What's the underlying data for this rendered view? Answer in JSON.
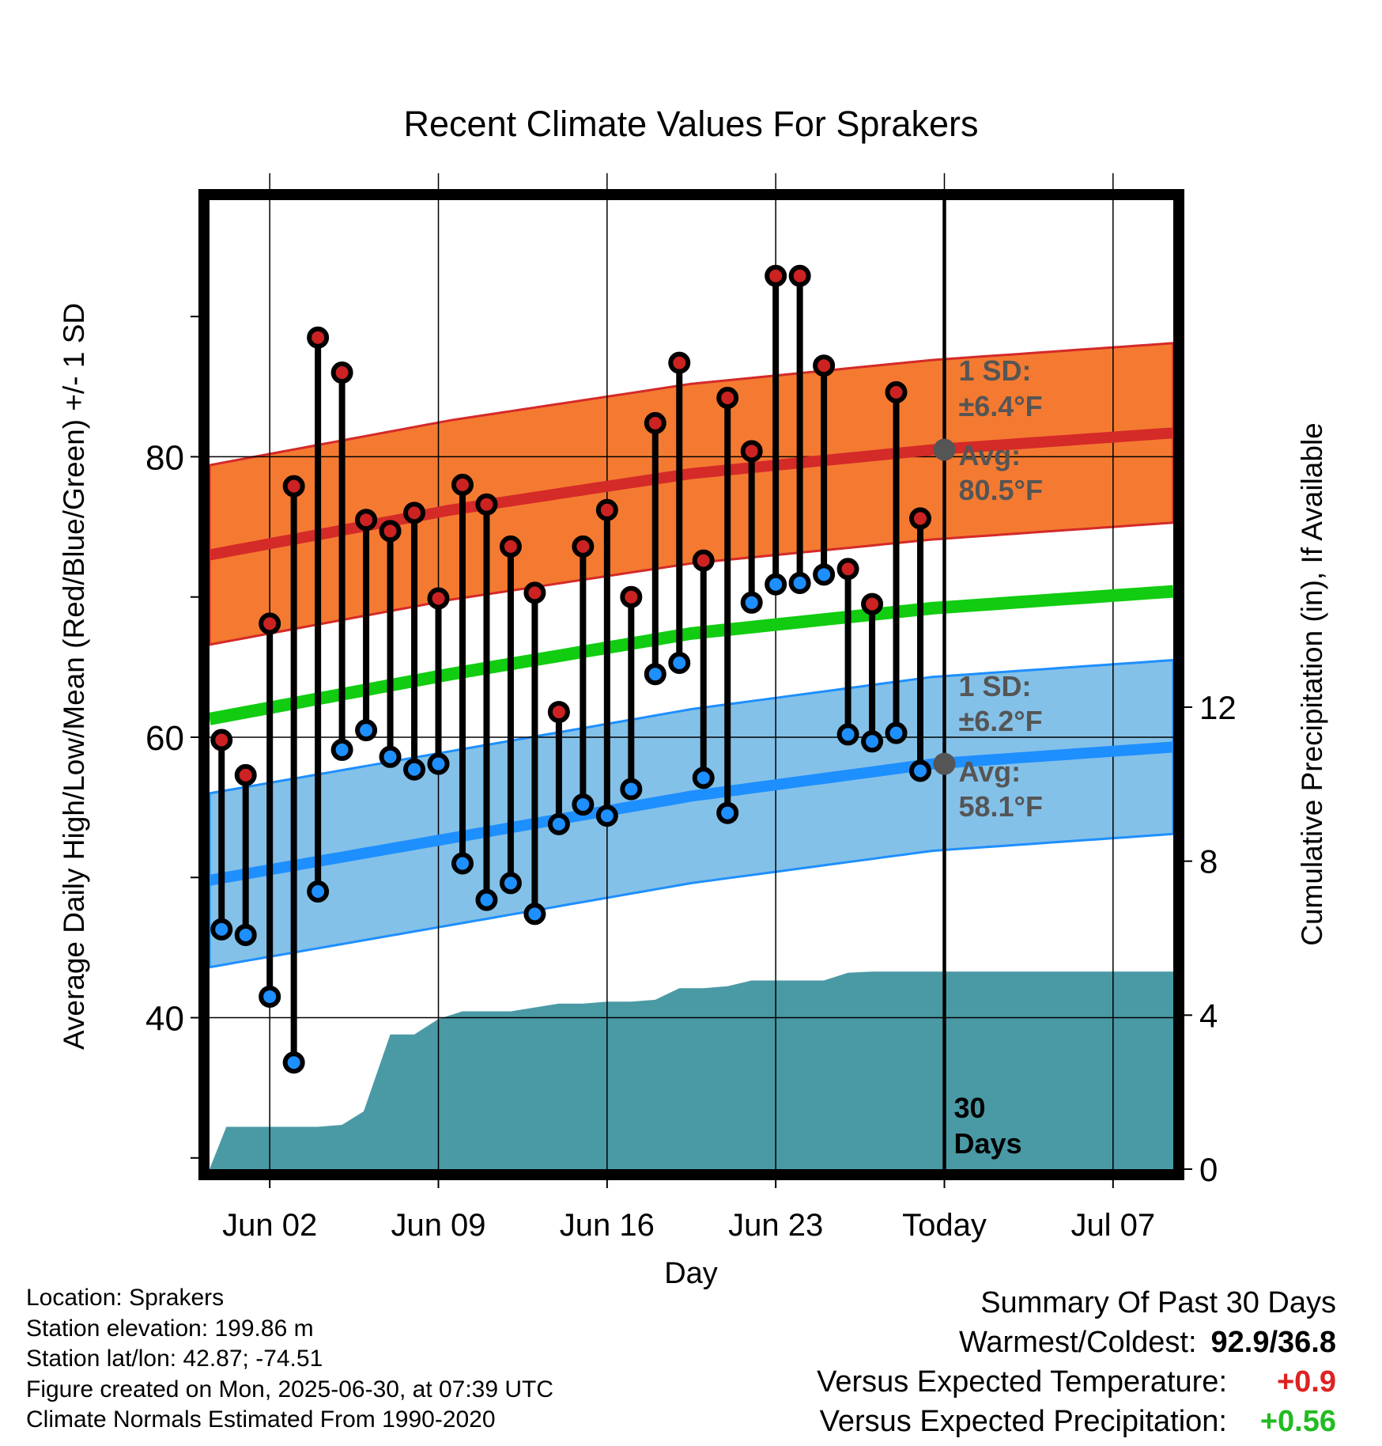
{
  "chart_data": {
    "type": "line",
    "title": "Recent Climate Values For Sprakers",
    "xlabel": "Day",
    "ylabel": "Average Daily High/Low/Mean (Red/Blue/Green) +/- 1 SD",
    "y2label": "Cumulative Precipitation (in), If Available",
    "x_ticks": [
      "Jun 02",
      "Jun 09",
      "Jun 16",
      "Jun 23",
      "Today",
      "Jul 07"
    ],
    "x_tick_days": [
      2,
      9,
      16,
      23,
      30,
      37
    ],
    "xlim": [
      -0.5,
      39.5
    ],
    "y_ticks": [
      40,
      60,
      80
    ],
    "ylim": [
      29.2,
      98.3
    ],
    "y2_ticks": [
      0,
      4,
      8,
      12
    ],
    "y2lim": [
      0,
      25.17
    ],
    "today_day": 30,
    "today_label": "30 Days",
    "grid": true,
    "high_lows": [
      {
        "day": 0,
        "high": 59.8,
        "low": 46.3
      },
      {
        "day": 1,
        "high": 57.3,
        "low": 45.9
      },
      {
        "day": 2,
        "high": 68.1,
        "low": 41.5
      },
      {
        "day": 3,
        "high": 77.9,
        "low": 36.8
      },
      {
        "day": 4,
        "high": 88.5,
        "low": 49.0
      },
      {
        "day": 5,
        "high": 86.0,
        "low": 59.1
      },
      {
        "day": 6,
        "high": 75.5,
        "low": 60.5
      },
      {
        "day": 7,
        "high": 74.7,
        "low": 58.6
      },
      {
        "day": 8,
        "high": 76.0,
        "low": 57.7
      },
      {
        "day": 9,
        "high": 69.9,
        "low": 58.1
      },
      {
        "day": 10,
        "high": 78.0,
        "low": 51.0
      },
      {
        "day": 11,
        "high": 76.6,
        "low": 48.4
      },
      {
        "day": 12,
        "high": 73.6,
        "low": 49.6
      },
      {
        "day": 13,
        "high": 70.3,
        "low": 47.4
      },
      {
        "day": 14,
        "high": 61.8,
        "low": 53.8
      },
      {
        "day": 15,
        "high": 73.6,
        "low": 55.2
      },
      {
        "day": 16,
        "high": 76.2,
        "low": 54.4
      },
      {
        "day": 17,
        "high": 70.0,
        "low": 56.3
      },
      {
        "day": 18,
        "high": 82.4,
        "low": 64.5
      },
      {
        "day": 19,
        "high": 86.7,
        "low": 65.3
      },
      {
        "day": 20,
        "high": 72.6,
        "low": 57.1
      },
      {
        "day": 21,
        "high": 84.2,
        "low": 54.6
      },
      {
        "day": 22,
        "high": 80.4,
        "low": 69.6
      },
      {
        "day": 23,
        "high": 92.9,
        "low": 70.9
      },
      {
        "day": 24,
        "high": 92.9,
        "low": 71.0
      },
      {
        "day": 25,
        "high": 86.5,
        "low": 71.6
      },
      {
        "day": 26,
        "high": 72.0,
        "low": 60.2
      },
      {
        "day": 27,
        "high": 69.5,
        "low": 59.7
      },
      {
        "day": 28,
        "high": 84.6,
        "low": 60.3
      },
      {
        "day": 29,
        "high": 75.6,
        "low": 57.6
      }
    ],
    "normals": {
      "days": [
        -0.5,
        9.5,
        19.5,
        29.5,
        39.5
      ],
      "high_avg": [
        73.0,
        76.2,
        78.8,
        80.5,
        81.7
      ],
      "low_avg": [
        49.8,
        52.8,
        55.8,
        58.1,
        59.3
      ],
      "mean_avg": [
        61.3,
        64.5,
        67.4,
        69.2,
        70.4
      ],
      "high_sd": 6.4,
      "low_sd": 6.2
    },
    "precip": {
      "days": [
        -0.5,
        0.2,
        1,
        2,
        3,
        4,
        5,
        5.9,
        7,
        8,
        9,
        10,
        11,
        12,
        13,
        14,
        15,
        16,
        17,
        18,
        19,
        20,
        21,
        22,
        23,
        24,
        25,
        26,
        27,
        28,
        29,
        30,
        39.5
      ],
      "values": [
        0,
        1.1,
        1.1,
        1.1,
        1.1,
        1.1,
        1.15,
        1.5,
        3.5,
        3.5,
        3.9,
        4.1,
        4.1,
        4.1,
        4.2,
        4.3,
        4.3,
        4.35,
        4.35,
        4.4,
        4.7,
        4.7,
        4.75,
        4.9,
        4.9,
        4.9,
        4.9,
        5.1,
        5.13,
        5.13,
        5.13,
        5.13,
        5.13
      ]
    },
    "annotations": {
      "high_sd_label": "1 SD:",
      "high_sd_value": "±6.4°F",
      "high_avg_label": "Avg:",
      "high_avg_value": "80.5°F",
      "high_avg_marker": 80.5,
      "low_sd_label": "1 SD:",
      "low_sd_value": "±6.2°F",
      "low_avg_label": "Avg:",
      "low_avg_value": "58.1°F",
      "low_avg_marker": 58.1
    },
    "colors": {
      "high_band": "#F47A31",
      "high_line": "#D42A28",
      "low_band": "#84C1E8",
      "low_line": "#1E8FFF",
      "mean_line": "#11CC11",
      "precip": "#4A9AA5",
      "high_dot": "#CC2222",
      "low_dot": "#1E8FFF",
      "annotation": "#555555"
    }
  },
  "footer": {
    "location": "Location: Sprakers",
    "elevation": "Station elevation: 199.86 m",
    "latlon": "Station lat/lon: 42.87; -74.51",
    "created": "Figure created on Mon, 2025-06-30, at 07:39 UTC",
    "normals": "Climate Normals Estimated From 1990-2020"
  },
  "summary": {
    "title": "Summary Of Past 30 Days",
    "warm_cold_label": "Warmest/Coldest:",
    "warm_cold_value": "92.9/36.8",
    "temp_label": "Versus Expected Temperature:",
    "temp_value": "+0.9",
    "temp_color": "#DD2222",
    "precip_label": "Versus Expected Precipitation:",
    "precip_value": "+0.56",
    "precip_color": "#22BB22"
  }
}
